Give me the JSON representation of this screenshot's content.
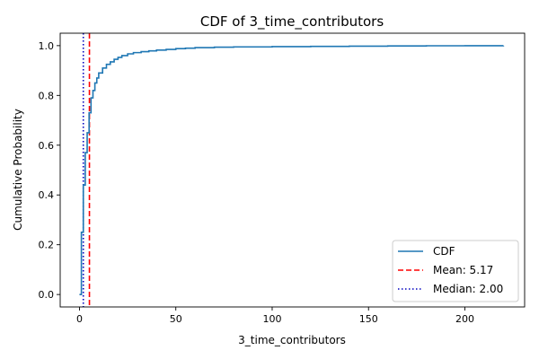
{
  "chart_data": {
    "type": "line",
    "title": "CDF of 3_time_contributors",
    "xlabel": "3_time_contributors",
    "ylabel": "Cumulative Probability",
    "xlim": [
      -10,
      231
    ],
    "ylim": [
      -0.05,
      1.05
    ],
    "xticks": [
      0,
      50,
      100,
      150,
      200
    ],
    "xtick_labels": [
      "0",
      "50",
      "100",
      "150",
      "200"
    ],
    "yticks": [
      0.0,
      0.2,
      0.4,
      0.6,
      0.8,
      1.0
    ],
    "ytick_labels": [
      "0.0",
      "0.2",
      "0.4",
      "0.6",
      "0.8",
      "1.0"
    ],
    "grid": false,
    "legend_position": "lower-right",
    "series": [
      {
        "name": "CDF",
        "kind": "step",
        "color": "#1f77b4",
        "x": [
          0,
          1,
          2,
          3,
          4,
          5,
          6,
          7,
          8,
          9,
          10,
          12,
          14,
          16,
          18,
          20,
          22,
          25,
          28,
          32,
          36,
          40,
          45,
          50,
          55,
          60,
          70,
          80,
          100,
          120,
          140,
          160,
          180,
          200,
          220
        ],
        "y": [
          0.0,
          0.25,
          0.44,
          0.57,
          0.65,
          0.73,
          0.79,
          0.82,
          0.85,
          0.87,
          0.89,
          0.91,
          0.925,
          0.935,
          0.945,
          0.953,
          0.96,
          0.967,
          0.972,
          0.976,
          0.979,
          0.982,
          0.985,
          0.988,
          0.99,
          0.992,
          0.994,
          0.995,
          0.996,
          0.997,
          0.998,
          0.999,
          0.9995,
          0.9998,
          1.0
        ]
      }
    ],
    "reference_lines": [
      {
        "name": "Mean: 5.17",
        "value": 5.17,
        "color": "#ff0000",
        "style": "dashed"
      },
      {
        "name": "Median: 2.00",
        "value": 2.0,
        "color": "#0000bf",
        "style": "dotted"
      }
    ]
  }
}
